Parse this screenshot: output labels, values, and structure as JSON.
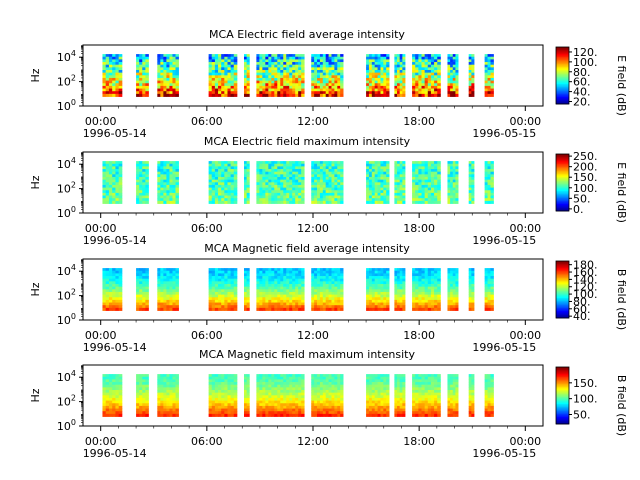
{
  "figure": {
    "background": "#ffffff"
  },
  "chart_data": [
    {
      "type": "heatmap",
      "title": "MCA  Electric field average intensity",
      "ylabel": "Hz",
      "colorbar_label": "E field (dB)",
      "colorbar_ticks": [
        "20.",
        "40.",
        "60.",
        "80.",
        "100.",
        "120."
      ],
      "colorbar_range": [
        15,
        130
      ],
      "y_ticks": [
        "10^0",
        "10^2",
        "10^4"
      ],
      "y_scale": "log",
      "ylim": [
        1,
        100000
      ],
      "x_ticks": [
        "00:00",
        "06:00",
        "12:00",
        "18:00"
      ],
      "x_start_date": "1996-05-14",
      "x_end_label": "00:00",
      "x_end_date": "1996-05-15",
      "xlim_hours": [
        -1,
        25
      ],
      "data_freq_range": [
        6,
        18000
      ],
      "data_segments": [
        [
          0.1,
          1.2
        ],
        [
          2.0,
          2.7
        ],
        [
          3.2,
          4.4
        ],
        [
          6.1,
          7.7
        ],
        [
          8.1,
          8.4
        ],
        [
          8.8,
          11.5
        ],
        [
          11.9,
          13.7
        ],
        [
          15.0,
          16.3
        ],
        [
          16.6,
          17.2
        ],
        [
          17.6,
          19.2
        ],
        [
          19.6,
          20.2
        ],
        [
          20.8,
          21.1
        ],
        [
          21.7,
          22.2
        ]
      ],
      "intensity_profile": {
        "high_freq_level": 55,
        "low_freq_level": 115,
        "noise": 25
      }
    },
    {
      "type": "heatmap",
      "title": "MCA  Electric field maximum intensity",
      "ylabel": "Hz",
      "colorbar_label": "E field (dB)",
      "colorbar_ticks": [
        "0.",
        "50.",
        "100.",
        "150.",
        "200.",
        "250."
      ],
      "colorbar_range": [
        -10,
        260
      ],
      "y_ticks": [
        "10^0",
        "10^2",
        "10^4"
      ],
      "y_scale": "log",
      "ylim": [
        1,
        100000
      ],
      "x_ticks": [
        "00:00",
        "06:00",
        "12:00",
        "18:00"
      ],
      "x_start_date": "1996-05-14",
      "x_end_label": "00:00",
      "x_end_date": "1996-05-15",
      "xlim_hours": [
        -1,
        25
      ],
      "data_freq_range": [
        6,
        18000
      ],
      "data_segments": [
        [
          0.1,
          1.2
        ],
        [
          2.0,
          2.7
        ],
        [
          3.2,
          4.4
        ],
        [
          6.1,
          7.7
        ],
        [
          8.1,
          8.4
        ],
        [
          8.8,
          11.5
        ],
        [
          11.9,
          13.7
        ],
        [
          15.0,
          16.3
        ],
        [
          16.6,
          17.2
        ],
        [
          17.6,
          19.2
        ],
        [
          19.6,
          20.2
        ],
        [
          20.8,
          21.1
        ],
        [
          21.7,
          22.2
        ]
      ],
      "intensity_profile": {
        "high_freq_level": 105,
        "low_freq_level": 120,
        "noise": 30
      }
    },
    {
      "type": "heatmap",
      "title": "MCA  Magnetic field average intensity",
      "ylabel": "Hz",
      "colorbar_label": "B field (dB)",
      "colorbar_ticks": [
        "40.",
        "60.",
        "80.",
        "100.",
        "120.",
        "140.",
        "160.",
        "180."
      ],
      "colorbar_range": [
        35,
        190
      ],
      "y_ticks": [
        "10^0",
        "10^2",
        "10^4"
      ],
      "y_scale": "log",
      "ylim": [
        1,
        100000
      ],
      "x_ticks": [
        "00:00",
        "06:00",
        "12:00",
        "18:00"
      ],
      "x_start_date": "1996-05-14",
      "x_end_label": "00:00",
      "x_end_date": "1996-05-15",
      "xlim_hours": [
        -1,
        25
      ],
      "data_freq_range": [
        6,
        18000
      ],
      "data_segments": [
        [
          0.1,
          1.2
        ],
        [
          2.0,
          2.7
        ],
        [
          3.2,
          4.4
        ],
        [
          6.1,
          7.7
        ],
        [
          8.1,
          8.4
        ],
        [
          8.8,
          11.5
        ],
        [
          11.9,
          13.7
        ],
        [
          15.0,
          16.3
        ],
        [
          16.6,
          17.2
        ],
        [
          17.6,
          19.2
        ],
        [
          19.6,
          20.2
        ],
        [
          20.8,
          21.1
        ],
        [
          21.7,
          22.2
        ]
      ],
      "intensity_profile": {
        "high_freq_level": 85,
        "low_freq_level": 160,
        "noise": 8
      }
    },
    {
      "type": "heatmap",
      "title": "MCA  Magnetic field maximum intensity",
      "ylabel": "Hz",
      "colorbar_label": "B field (dB)",
      "colorbar_ticks": [
        "50.",
        "100.",
        "150."
      ],
      "colorbar_range": [
        20,
        200
      ],
      "y_ticks": [
        "10^0",
        "10^2",
        "10^4"
      ],
      "y_scale": "log",
      "ylim": [
        1,
        100000
      ],
      "x_ticks": [
        "00:00",
        "06:00",
        "12:00",
        "18:00"
      ],
      "x_start_date": "1996-05-14",
      "x_end_label": "00:00",
      "x_end_date": "1996-05-15",
      "xlim_hours": [
        -1,
        25
      ],
      "data_freq_range": [
        6,
        18000
      ],
      "data_segments": [
        [
          0.1,
          1.2
        ],
        [
          2.0,
          2.7
        ],
        [
          3.2,
          4.4
        ],
        [
          6.1,
          7.7
        ],
        [
          8.1,
          8.4
        ],
        [
          8.8,
          11.5
        ],
        [
          11.9,
          13.7
        ],
        [
          15.0,
          16.3
        ],
        [
          16.6,
          17.2
        ],
        [
          17.6,
          19.2
        ],
        [
          19.6,
          20.2
        ],
        [
          20.8,
          21.1
        ],
        [
          21.7,
          22.2
        ]
      ],
      "intensity_profile": {
        "high_freq_level": 100,
        "low_freq_level": 170,
        "noise": 8
      }
    }
  ]
}
